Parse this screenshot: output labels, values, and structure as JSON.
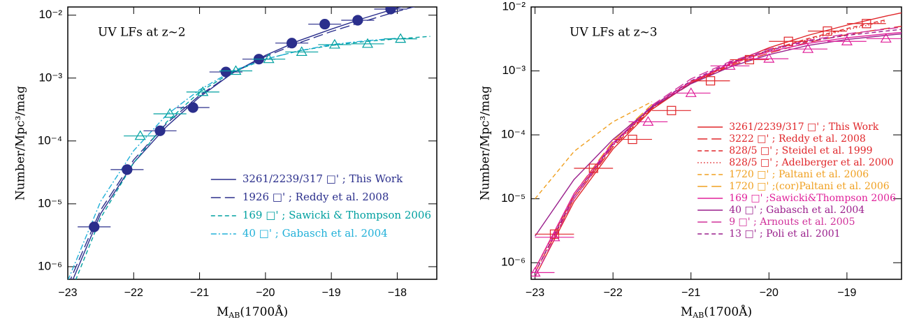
{
  "chart_data": [
    {
      "type": "line",
      "annotation": "UV LFs at z~2",
      "xlabel": [
        "M",
        "AB",
        "(1700Å)"
      ],
      "ylabel": "Number/Mpc³/mag",
      "xlim": [
        -23,
        -17.4
      ],
      "ylim": [
        6.3e-07,
        0.0135
      ],
      "ylog": true,
      "xticks": [
        {
          "value": -23,
          "label": "−23"
        },
        {
          "value": -22,
          "label": "−22"
        },
        {
          "value": -21,
          "label": "−21"
        },
        {
          "value": -20,
          "label": "−20"
        },
        {
          "value": -19,
          "label": "−19"
        },
        {
          "value": -18,
          "label": "−18"
        }
      ],
      "yticks": [
        {
          "value": 1e-06,
          "label": "10⁻⁶"
        },
        {
          "value": 1e-05,
          "label": "10⁻⁵"
        },
        {
          "value": 0.0001,
          "label": "10⁻⁴"
        },
        {
          "value": 0.001,
          "label": "10⁻³"
        },
        {
          "value": 0.01,
          "label": "10⁻²"
        }
      ],
      "legend": "lower right",
      "series": [
        {
          "name": "3261/2239/317 □' ; This Work",
          "color": "#2b2f8c",
          "dash": "solid",
          "x": [
            -23,
            -22.5,
            -22,
            -21.5,
            -21,
            -20.5,
            -20,
            -19.5,
            -19,
            -18.5,
            -18,
            -17.5
          ],
          "values": [
            4e-07,
            7e-06,
            4.5e-05,
            0.00017,
            0.0005,
            0.0012,
            0.0023,
            0.0039,
            0.006,
            0.009,
            0.013,
            0.018
          ]
        },
        {
          "name": "1926 □' ; Reddy et al. 2008",
          "color": "#2b2f8c",
          "dash": "long",
          "x": [
            -23,
            -22.5,
            -22,
            -21.5,
            -21,
            -20.5,
            -20,
            -19.5,
            -19,
            -18.5,
            -18,
            -17.5
          ],
          "values": [
            5e-07,
            8e-06,
            5e-05,
            0.00019,
            0.00053,
            0.0012,
            0.0022,
            0.0036,
            0.0055,
            0.008,
            0.0115,
            0.016
          ]
        },
        {
          "name": "169 □' ; Sawicki & Thompson 2006",
          "color": "#00a0a0",
          "dash": "short",
          "x": [
            -23,
            -22.5,
            -22,
            -21.5,
            -21,
            -20.5,
            -20,
            -19.5,
            -19,
            -18.5,
            -18,
            -17.5
          ],
          "values": [
            3e-07,
            6e-06,
            4.5e-05,
            0.0002,
            0.0006,
            0.00125,
            0.002,
            0.0027,
            0.0033,
            0.0038,
            0.0042,
            0.0046
          ]
        },
        {
          "name": "40 □' ; Gabasch et al. 2004",
          "color": "#20b0d8",
          "dash": "dashdot",
          "x": [
            -23,
            -22.5,
            -22,
            -21.5,
            -21,
            -20.5,
            -20,
            -19.5,
            -19,
            -18.5,
            -18,
            -17.5
          ],
          "values": [
            6e-07,
            1.1e-05,
            7e-05,
            0.00026,
            0.00065,
            0.0013,
            0.002,
            0.0027,
            0.0034,
            0.0039,
            0.0043,
            null
          ]
        }
      ],
      "points": [
        {
          "color": "#2b2f8c",
          "marker": "circle",
          "filled": true,
          "xerr": 0.25,
          "x": [
            -22.6,
            -22.1,
            -21.6,
            -21.1,
            -20.6,
            -20.1,
            -19.6,
            -19.1,
            -18.6,
            -18.1
          ],
          "values": [
            4.3e-06,
            3.5e-05,
            0.000145,
            0.00034,
            0.00125,
            0.002,
            0.0036,
            0.0072,
            0.0083,
            0.0125
          ]
        },
        {
          "color": "#00a0a0",
          "marker": "triangle",
          "filled": false,
          "xerr": 0.25,
          "x": [
            -21.9,
            -21.45,
            -20.95,
            -20.45,
            -19.95,
            -19.45,
            -18.95,
            -18.45,
            -17.95
          ],
          "values": [
            0.00012,
            0.00027,
            0.0006,
            0.0013,
            0.002,
            0.0026,
            0.0034,
            0.0035,
            0.0042
          ]
        }
      ]
    },
    {
      "type": "line",
      "annotation": "UV LFs at z~3",
      "xlabel": [
        "M",
        "AB",
        "(1700Å)"
      ],
      "ylabel": "Number/Mpc³/mag",
      "xlim": [
        -23.05,
        -18.3
      ],
      "ylim": [
        5.5e-07,
        0.01
      ],
      "ylog": true,
      "xticks": [
        {
          "value": -23,
          "label": "−23"
        },
        {
          "value": -22,
          "label": "−22"
        },
        {
          "value": -21,
          "label": "−21"
        },
        {
          "value": -20,
          "label": "−20"
        },
        {
          "value": -19,
          "label": "−19"
        }
      ],
      "yticks": [
        {
          "value": 1e-06,
          "label": "10⁻⁶"
        },
        {
          "value": 1e-05,
          "label": "10⁻⁵"
        },
        {
          "value": 0.0001,
          "label": "10⁻⁴"
        },
        {
          "value": 0.001,
          "label": "10⁻³"
        },
        {
          "value": 0.01,
          "label": "10⁻²"
        }
      ],
      "legend": "lower right",
      "series": [
        {
          "name": "3261/2239/317 □' ; This Work",
          "color": "#e0262a",
          "dash": "solid",
          "x": [
            -23,
            -22.5,
            -22,
            -21.5,
            -21,
            -20.5,
            -20,
            -19.5,
            -19,
            -18.5,
            -18.2
          ],
          "values": [
            6e-07,
            9e-06,
            6e-05,
            0.00025,
            0.00065,
            0.0013,
            0.0023,
            0.0036,
            0.0052,
            0.0072,
            0.0086
          ]
        },
        {
          "name": "3222 □' ; Reddy et al. 2008",
          "color": "#e0262a",
          "dash": "long",
          "x": [
            -23,
            -22.5,
            -22,
            -21.5,
            -21,
            -20.5,
            -20,
            -19.5,
            -19,
            -18.5,
            -18.2
          ],
          "values": [
            7e-07,
            1e-05,
            6.5e-05,
            0.00026,
            0.00063,
            0.0012,
            0.0019,
            0.0028,
            0.0037,
            0.0046,
            0.0052
          ]
        },
        {
          "name": "828/5 □' ; Steidel et al. 1999",
          "color": "#e0262a",
          "dash": "short",
          "x": [
            -23,
            -22.5,
            -22,
            -21.5,
            -21,
            -20.5,
            -20,
            -19.5,
            -19,
            -18.5,
            -18.2
          ],
          "values": [
            8e-07,
            1.1e-05,
            7e-05,
            0.00027,
            0.00065,
            0.00125,
            0.0021,
            0.0032,
            0.0046,
            0.0063,
            null
          ]
        },
        {
          "name": "828/5 □' ; Adelberger et al. 2000",
          "color": "#e0262a",
          "dash": "dot",
          "x": [
            -23,
            -22.5,
            -22,
            -21.5,
            -21,
            -20.5,
            -20,
            -19.5,
            -19,
            -18.5,
            -18.2
          ],
          "values": [
            7e-07,
            1e-05,
            6.8e-05,
            0.000265,
            0.00064,
            0.00125,
            0.00205,
            0.0031,
            0.0044,
            0.006,
            null
          ]
        },
        {
          "name": "1720 □' ; Paltani et al. 2006",
          "color": "#f0a020",
          "dash": "short",
          "x": [
            -23,
            -22.5,
            -22,
            -21.5,
            -21,
            -20.5,
            -20,
            -19.5,
            -19,
            -18.5,
            -18.2
          ],
          "values": [
            1e-05,
            5.5e-05,
            0.00016,
            0.00033,
            null,
            null,
            null,
            null,
            null,
            null,
            null
          ]
        },
        {
          "name": "1720 □' ;(cor)Paltani et al. 2006",
          "color": "#f0a020",
          "dash": "long",
          "x": [
            -23,
            -22.5,
            -22,
            -21.5,
            -21,
            -20.5,
            -20,
            -19.5,
            -19,
            -18.5,
            -18.2
          ],
          "values": [
            8e-07,
            1.2e-05,
            8e-05,
            0.0003,
            null,
            null,
            null,
            null,
            null,
            null,
            null
          ]
        },
        {
          "name": "169 □' ;Sawicki&Thompson 2006",
          "color": "#e0209a",
          "dash": "solid",
          "x": [
            -23,
            -22.5,
            -22,
            -21.5,
            -21,
            -20.5,
            -20,
            -19.5,
            -19,
            -18.5,
            -18.2
          ],
          "values": [
            8e-07,
            1.2e-05,
            7.5e-05,
            0.00028,
            0.00068,
            0.0013,
            0.002,
            0.0027,
            0.0033,
            0.0038,
            0.0041
          ]
        },
        {
          "name": "40 □' ; Gabasch et al. 2004",
          "color": "#9a1f8c",
          "dash": "solid",
          "x": [
            -23,
            -22.5,
            -22,
            -21.5,
            -21,
            -20.5,
            -20,
            -19.5,
            -19,
            -18.5,
            -18.2
          ],
          "values": [
            2.6e-06,
            2e-05,
            8.5e-05,
            0.00027,
            0.00063,
            0.00115,
            0.0018,
            0.0025,
            0.0031,
            0.0036,
            0.0039
          ]
        },
        {
          "name": "9 □' ; Arnouts et al. 2005",
          "color": "#d0309a",
          "dash": "long",
          "x": [
            -23,
            -22.5,
            -22,
            -21.5,
            -21,
            -20.5,
            -20,
            -19.5,
            -19,
            -18.5,
            -18.2
          ],
          "values": [
            6e-07,
            1e-05,
            7e-05,
            0.00029,
            0.00075,
            0.0014,
            0.0022,
            0.003,
            0.0038,
            0.0045,
            0.005
          ]
        },
        {
          "name": "13 □' ; Poli et al. 2001",
          "color": "#9a1f8c",
          "dash": "short",
          "x": [
            -23,
            -22.5,
            -22,
            -21.5,
            -21,
            -20.5,
            -20,
            -19.5,
            -19,
            -18.5,
            -18.2
          ],
          "values": [
            7e-07,
            1.1e-05,
            7.2e-05,
            0.00028,
            0.0007,
            0.00135,
            0.0021,
            0.0029,
            0.0036,
            0.0042,
            0.0046
          ]
        }
      ],
      "points": [
        {
          "color": "#e0262a",
          "marker": "square",
          "filled": false,
          "xerr": 0.25,
          "x": [
            -22.75,
            -22.25,
            -21.75,
            -21.25,
            -20.75,
            -20.25,
            -19.75,
            -19.25,
            -18.75
          ],
          "values": [
            2.8e-06,
            3e-05,
            8.5e-05,
            0.00024,
            0.0007,
            0.0015,
            0.0029,
            0.0042,
            0.0055
          ]
        },
        {
          "color": "#e0209a",
          "marker": "triangle",
          "filled": false,
          "xerr": 0.25,
          "x": [
            -23,
            -22.75,
            -21.55,
            -21,
            -20.5,
            -20,
            -19.5,
            -19,
            -18.5
          ],
          "values": [
            7e-07,
            2.5e-06,
            0.00016,
            0.00045,
            0.0012,
            0.00155,
            0.0022,
            0.0029,
            0.0032
          ]
        }
      ]
    }
  ]
}
